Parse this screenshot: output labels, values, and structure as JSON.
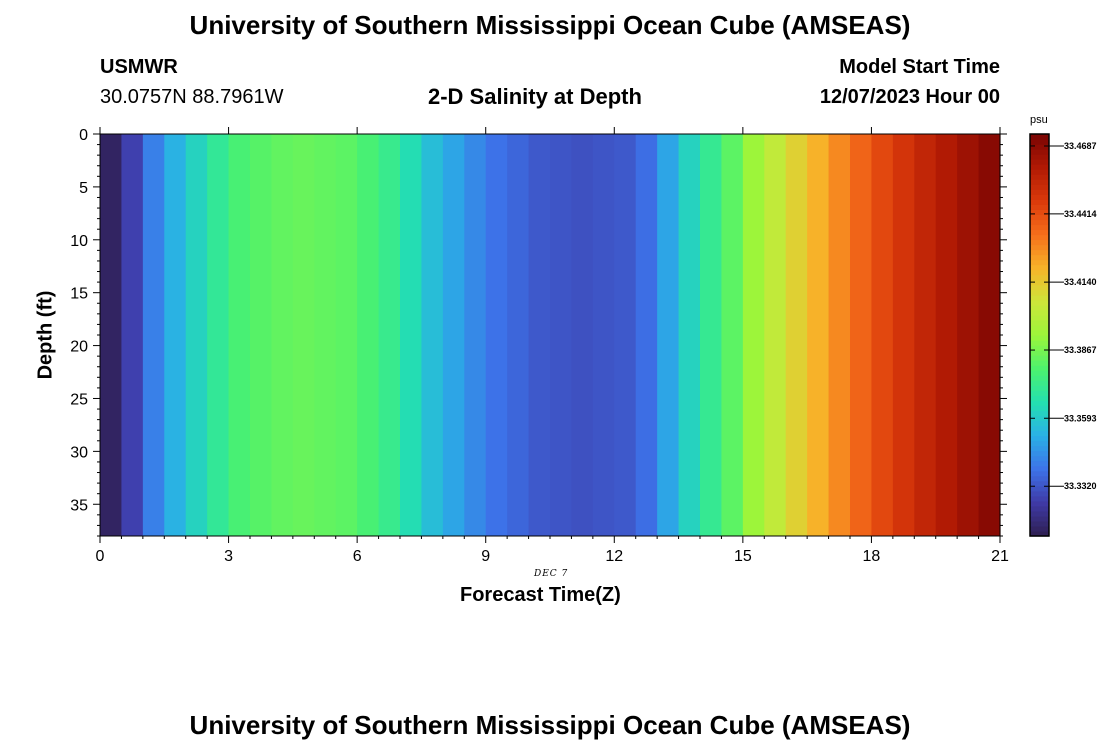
{
  "header": {
    "title": "University of Southern Mississippi Ocean Cube (AMSEAS)",
    "station": "USMWR",
    "coordinates": "30.0757N  88.7961W",
    "subtitle": "2-D Salinity at Depth",
    "model_start_label": "Model Start Time",
    "model_start_value": "12/07/2023 Hour 00"
  },
  "footer": {
    "title": "University of Southern Mississippi Ocean Cube (AMSEAS)"
  },
  "chart_data": {
    "type": "heatmap",
    "title": "2-D Salinity at Depth",
    "xlabel": "Forecast Time(Z)",
    "ylabel": "Depth (ft)",
    "x_date_label": "DEC 7",
    "xlim": [
      0,
      21
    ],
    "ylim": [
      38,
      0
    ],
    "x_ticks": [
      "0",
      "3",
      "6",
      "9",
      "12",
      "15",
      "18",
      "21"
    ],
    "y_ticks": [
      "0",
      "5",
      "10",
      "15",
      "20",
      "25",
      "30",
      "35"
    ],
    "colorbar": {
      "unit": "psu",
      "range": [
        33.312,
        33.4735
      ],
      "ticks": [
        "33.4687",
        "33.4414",
        "33.4140",
        "33.3867",
        "33.3593",
        "33.3320"
      ],
      "colors": [
        "#2e1e4f",
        "#3f3aa6",
        "#3d72e8",
        "#2ab0e6",
        "#24e0b0",
        "#4cf26e",
        "#9cf53a",
        "#cde63a",
        "#f7b429",
        "#f66f1b",
        "#db3a0b",
        "#b11a04",
        "#7a0403"
      ]
    },
    "time_steps": [
      0,
      0.5,
      1,
      1.5,
      2,
      2.5,
      3,
      3.5,
      4,
      4.5,
      5,
      5.5,
      6,
      6.5,
      7,
      7.5,
      8,
      8.5,
      9,
      9.5,
      10,
      10.5,
      11,
      11.5,
      12,
      12.5,
      13,
      13.5,
      14,
      14.5,
      15,
      15.5,
      16,
      16.5,
      17,
      17.5,
      18,
      18.5,
      19,
      19.5,
      20,
      20.5
    ],
    "salinity": [
      33.315,
      33.327,
      33.342,
      33.353,
      33.362,
      33.371,
      33.378,
      33.381,
      33.383,
      33.384,
      33.383,
      33.382,
      33.378,
      33.373,
      33.365,
      33.356,
      33.35,
      33.344,
      33.339,
      33.336,
      33.333,
      33.332,
      33.331,
      33.332,
      33.333,
      33.338,
      33.35,
      33.362,
      33.372,
      33.382,
      33.393,
      33.403,
      33.412,
      33.42,
      33.428,
      33.436,
      33.443,
      33.449,
      33.455,
      33.46,
      33.465,
      33.47
    ]
  }
}
